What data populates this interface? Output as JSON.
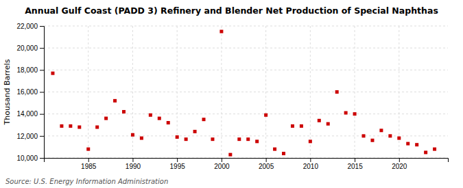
{
  "chart_data": {
    "type": "scatter",
    "title": "Annual Gulf Coast (PADD 3) Refinery and Blender Net Production of Special Naphthas",
    "ylabel": "Thousand Barrels",
    "source": "Source: U.S. Energy Information Administration",
    "x": [
      1981,
      1982,
      1983,
      1984,
      1985,
      1986,
      1987,
      1988,
      1989,
      1990,
      1991,
      1992,
      1993,
      1994,
      1995,
      1996,
      1997,
      1998,
      1999,
      2000,
      2001,
      2002,
      2003,
      2004,
      2005,
      2006,
      2007,
      2008,
      2009,
      2010,
      2011,
      2012,
      2013,
      2014,
      2015,
      2016,
      2017,
      2018,
      2019,
      2020,
      2021,
      2022,
      2023,
      2024
    ],
    "values": [
      17700,
      12900,
      12900,
      12800,
      10800,
      12800,
      13600,
      15200,
      14200,
      12100,
      11800,
      13900,
      13600,
      13200,
      11900,
      11700,
      12400,
      13500,
      11700,
      21500,
      10300,
      11700,
      11700,
      11500,
      13900,
      10800,
      10400,
      12900,
      12900,
      11500,
      13400,
      13100,
      16000,
      14100,
      14000,
      12000,
      11600,
      12500,
      12000,
      11800,
      11300,
      11200,
      10500,
      10800
    ],
    "color": "#cc0000",
    "marker": "square",
    "xlim": [
      1980,
      2025.5
    ],
    "xticks": [
      1985,
      1990,
      1995,
      2000,
      2005,
      2010,
      2015,
      2020
    ],
    "ylim": [
      10000,
      22000
    ],
    "yticks": [
      {
        "value": 10000,
        "label": "10,000"
      },
      {
        "value": 12000,
        "label": "12,000"
      },
      {
        "value": 14000,
        "label": "14,000"
      },
      {
        "value": 16000,
        "label": "16,000"
      },
      {
        "value": 18000,
        "label": "18,000"
      },
      {
        "value": 20000,
        "label": "20,000"
      },
      {
        "value": 22000,
        "label": "22,000"
      }
    ],
    "grid": true
  }
}
